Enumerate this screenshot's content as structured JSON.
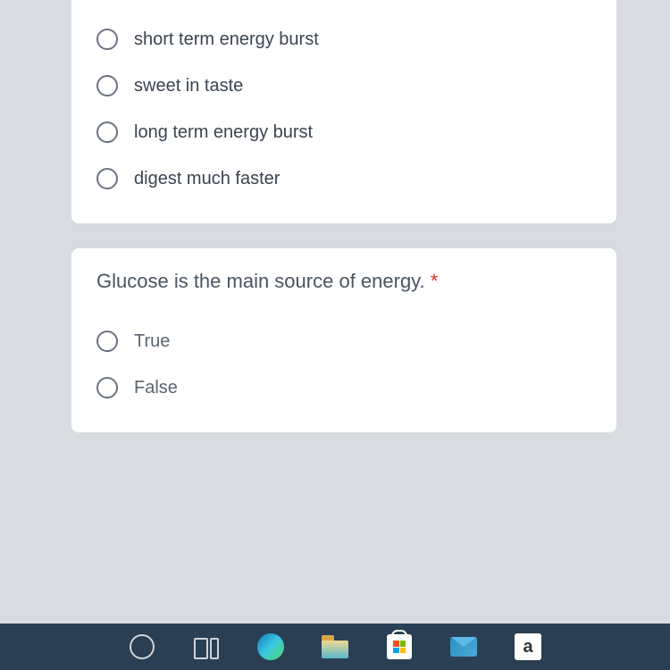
{
  "question1": {
    "options": [
      "short term energy burst",
      "sweet in taste",
      "long term energy burst",
      "digest much faster"
    ]
  },
  "question2": {
    "text": "Glucose is the main source of energy.",
    "required_marker": "*",
    "options": [
      "True",
      "False"
    ]
  },
  "taskbar": {
    "amazon_letter": "a"
  },
  "colors": {
    "page_background": "#d8dce0",
    "card_background": "#ffffff",
    "question_text": "#4a5560",
    "option_text": "#3a4450",
    "radio_border": "#6b7280",
    "required": "#d93025",
    "taskbar_background": "#2a3f54"
  }
}
